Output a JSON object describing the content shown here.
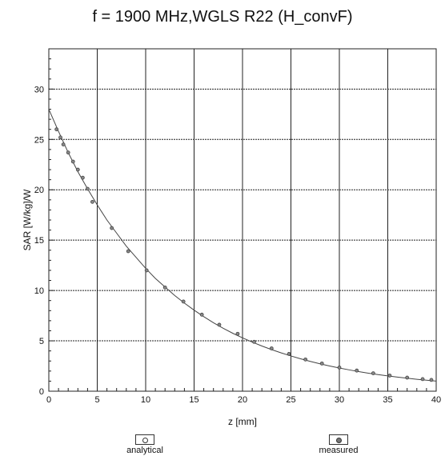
{
  "chart_data": {
    "type": "line",
    "title": "f = 1900 MHz,WGLS R22 (H_convF)",
    "xlabel": "z [mm]",
    "ylabel": "SAR [W/kg]/W",
    "xlim": [
      0,
      40
    ],
    "ylim": [
      0,
      34
    ],
    "xticks": [
      0,
      5,
      10,
      15,
      20,
      25,
      30,
      35,
      40
    ],
    "yticks": [
      0,
      5,
      10,
      15,
      20,
      25,
      30
    ],
    "grid": true,
    "legend_placement": "bottom",
    "series": [
      {
        "name": "analytical",
        "style": "line",
        "color": "#444444",
        "x": [
          0,
          1,
          2,
          3,
          4,
          5,
          6,
          7,
          8,
          9,
          10,
          11,
          12,
          13,
          14,
          15,
          16,
          17,
          18,
          19,
          20,
          21,
          22,
          23,
          24,
          25,
          26,
          27,
          28,
          29,
          30,
          31,
          32,
          33,
          34,
          35,
          36,
          37,
          38,
          39,
          40
        ],
        "values": [
          28.0,
          25.8,
          23.7,
          21.8,
          20.1,
          18.5,
          17.0,
          15.7,
          14.4,
          13.3,
          12.2,
          11.2,
          10.35,
          9.5,
          8.75,
          8.05,
          7.4,
          6.8,
          6.25,
          5.75,
          5.3,
          4.88,
          4.49,
          4.13,
          3.8,
          3.5,
          3.22,
          2.96,
          2.72,
          2.5,
          2.3,
          2.12,
          1.95,
          1.79,
          1.65,
          1.52,
          1.4,
          1.29,
          1.18,
          1.09,
          1.0
        ]
      },
      {
        "name": "measured",
        "style": "markers",
        "color": "#444444",
        "x": [
          0.8,
          1.2,
          1.5,
          2.0,
          2.5,
          3.0,
          3.5,
          4.0,
          4.5,
          6.5,
          8.2,
          10.1,
          12.0,
          13.9,
          15.8,
          17.6,
          19.5,
          21.2,
          23.0,
          24.8,
          26.5,
          28.2,
          30.0,
          31.8,
          33.5,
          35.2,
          37.0,
          38.6,
          39.5
        ],
        "values": [
          26.0,
          25.2,
          24.5,
          23.7,
          22.8,
          22.0,
          21.2,
          20.1,
          18.8,
          16.2,
          13.9,
          12.0,
          10.3,
          8.9,
          7.6,
          6.6,
          5.7,
          4.9,
          4.25,
          3.7,
          3.15,
          2.75,
          2.35,
          2.05,
          1.78,
          1.55,
          1.35,
          1.2,
          1.12
        ]
      }
    ]
  }
}
